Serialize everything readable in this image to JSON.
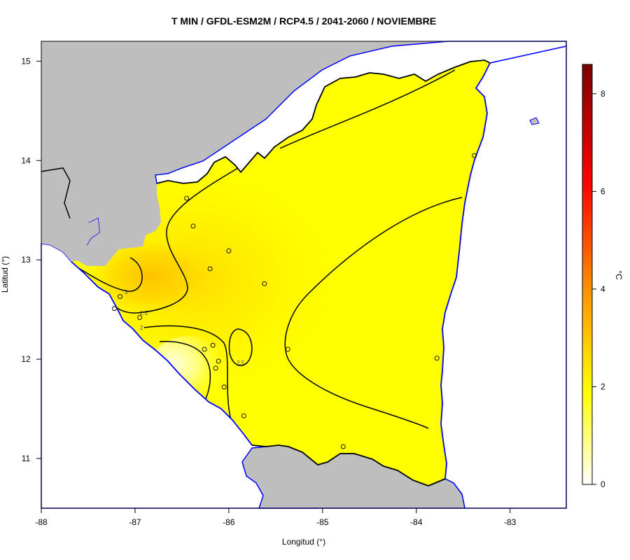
{
  "title": "T MIN / GFDL-ESM2M / RCP4.5 / 2041-2060 / NOVIEMBRE",
  "xlabel": "Longitud (°)",
  "ylabel": "Latitud (°)",
  "x_ticks": [
    "-88",
    "-87",
    "-86",
    "-85",
    "-84",
    "-83"
  ],
  "y_ticks": [
    "11",
    "12",
    "13",
    "14",
    "15"
  ],
  "colorbar": {
    "unit": "°C",
    "ticks": [
      "0",
      "2",
      "4",
      "6",
      "8"
    ],
    "range": [
      0,
      8.6
    ],
    "colors": [
      "#ffffff",
      "#ffff00",
      "#ff9900",
      "#ff0000",
      "#7a0000"
    ]
  },
  "map": {
    "background": "#bebebe",
    "sea_fill": "#ffffff",
    "coast_color": "#0000ff",
    "border_color": "#000000",
    "lon_range": [
      -88,
      -82.4
    ],
    "lat_range": [
      10.5,
      15.2
    ]
  },
  "contour_labels": [
    "3",
    "2.5",
    "2",
    "2.5"
  ],
  "stations": [
    {
      "lon": -86.45,
      "lat": 13.62
    },
    {
      "lon": -86.38,
      "lat": 13.34
    },
    {
      "lon": -86.0,
      "lat": 13.09
    },
    {
      "lon": -86.2,
      "lat": 12.91
    },
    {
      "lon": -85.62,
      "lat": 12.76
    },
    {
      "lon": -87.16,
      "lat": 12.63
    },
    {
      "lon": -87.22,
      "lat": 12.51
    },
    {
      "lon": -86.95,
      "lat": 12.42
    },
    {
      "lon": -86.26,
      "lat": 12.1
    },
    {
      "lon": -86.17,
      "lat": 12.14
    },
    {
      "lon": -86.11,
      "lat": 11.98
    },
    {
      "lon": -86.14,
      "lat": 11.91
    },
    {
      "lon": -86.05,
      "lat": 11.72
    },
    {
      "lon": -85.84,
      "lat": 11.43
    },
    {
      "lon": -85.37,
      "lat": 12.1
    },
    {
      "lon": -84.78,
      "lat": 11.12
    },
    {
      "lon": -83.78,
      "lat": 12.01
    },
    {
      "lon": -83.38,
      "lat": 14.05
    }
  ]
}
